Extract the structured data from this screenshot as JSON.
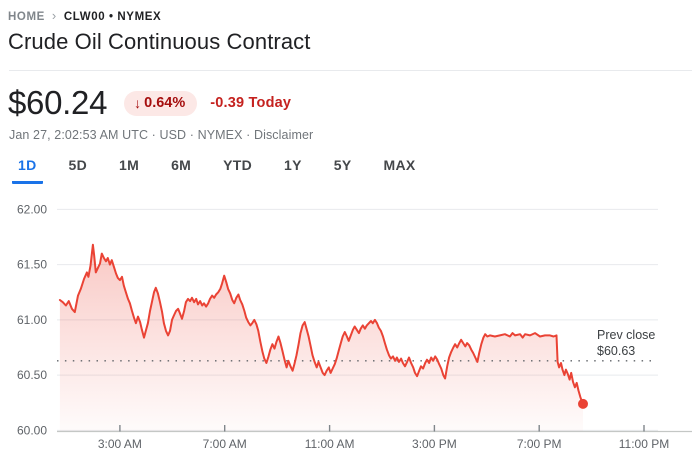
{
  "breadcrumb": {
    "home": "HOME",
    "separator": "›",
    "symbol": "CLW00 • NYMEX"
  },
  "header": {
    "title": "Crude Oil Continuous Contract"
  },
  "quote": {
    "price": "$60.24",
    "down_arrow": "↓",
    "change_percent": "0.64%",
    "change_today": "-0.39 Today",
    "meta_prefix": "Jan 27, 2:02:53 AM UTC · USD · NYMEX · ",
    "disclaimer": "Disclaimer"
  },
  "range_tabs": [
    {
      "label": "1D",
      "active": true
    },
    {
      "label": "5D",
      "active": false
    },
    {
      "label": "1M",
      "active": false
    },
    {
      "label": "6M",
      "active": false
    },
    {
      "label": "YTD",
      "active": false
    },
    {
      "label": "1Y",
      "active": false
    },
    {
      "label": "5Y",
      "active": false
    },
    {
      "label": "MAX",
      "active": false
    }
  ],
  "colors": {
    "accent_blue": "#1A73E8",
    "line_red": "#EA4335",
    "badge_bg": "#FCE8E6",
    "badge_text": "#A50E0E",
    "change_text": "#C5221F",
    "grid": "#E8EAED",
    "axis": "#C4C7C5",
    "axis_text": "#5F6368"
  },
  "chart_data": {
    "type": "line",
    "title": "Crude Oil Continuous Contract intraday price (1D)",
    "x_unit": "hours_since_midnight",
    "y_unit": "USD",
    "xlim": [
      0.6,
      24.83
    ],
    "ylim": [
      59.99,
      62.13
    ],
    "grid": true,
    "y_ticks": [
      62.0,
      61.5,
      61.0,
      60.5,
      60.0
    ],
    "y_tick_labels": [
      "62.00",
      "61.50",
      "61.00",
      "60.50",
      "60.00"
    ],
    "x_ticks": [
      {
        "t": 3,
        "label": "3:00 AM"
      },
      {
        "t": 7,
        "label": "7:00 AM"
      },
      {
        "t": 11,
        "label": "11:00 AM"
      },
      {
        "t": 15,
        "label": "3:00 PM"
      },
      {
        "t": 19,
        "label": "7:00 PM"
      },
      {
        "t": 23,
        "label": "11:00 PM"
      }
    ],
    "prev_close": {
      "label_line1": "Prev close",
      "label_line2": "$60.63",
      "value": 60.63
    },
    "end_marker": {
      "t": 20.67,
      "value": 60.24
    },
    "colors": {
      "line": "#EA4335"
    },
    "series": [
      {
        "name": "CLW00",
        "points": [
          [
            0.71,
            61.18
          ],
          [
            0.82,
            61.16
          ],
          [
            0.94,
            61.13
          ],
          [
            1.05,
            61.17
          ],
          [
            1.17,
            61.1
          ],
          [
            1.28,
            61.07
          ],
          [
            1.4,
            61.22
          ],
          [
            1.51,
            61.28
          ],
          [
            1.63,
            61.37
          ],
          [
            1.74,
            61.43
          ],
          [
            1.8,
            61.39
          ],
          [
            1.88,
            61.49
          ],
          [
            1.97,
            61.68
          ],
          [
            2.02,
            61.58
          ],
          [
            2.08,
            61.43
          ],
          [
            2.16,
            61.47
          ],
          [
            2.24,
            61.51
          ],
          [
            2.31,
            61.6
          ],
          [
            2.39,
            61.56
          ],
          [
            2.47,
            61.53
          ],
          [
            2.54,
            61.56
          ],
          [
            2.62,
            61.5
          ],
          [
            2.69,
            61.54
          ],
          [
            2.77,
            61.48
          ],
          [
            2.85,
            61.42
          ],
          [
            2.92,
            61.38
          ],
          [
            3.0,
            61.36
          ],
          [
            3.08,
            61.39
          ],
          [
            3.15,
            61.31
          ],
          [
            3.23,
            61.25
          ],
          [
            3.31,
            61.19
          ],
          [
            3.38,
            61.15
          ],
          [
            3.46,
            61.08
          ],
          [
            3.54,
            61.02
          ],
          [
            3.61,
            60.97
          ],
          [
            3.69,
            61.03
          ],
          [
            3.77,
            60.98
          ],
          [
            3.84,
            60.91
          ],
          [
            3.92,
            60.84
          ],
          [
            3.99,
            60.9
          ],
          [
            4.07,
            60.97
          ],
          [
            4.15,
            61.08
          ],
          [
            4.22,
            61.16
          ],
          [
            4.3,
            61.25
          ],
          [
            4.37,
            61.29
          ],
          [
            4.45,
            61.24
          ],
          [
            4.53,
            61.16
          ],
          [
            4.61,
            61.07
          ],
          [
            4.68,
            60.97
          ],
          [
            4.76,
            60.9
          ],
          [
            4.84,
            60.86
          ],
          [
            4.91,
            60.9
          ],
          [
            4.99,
            61.0
          ],
          [
            5.06,
            61.04
          ],
          [
            5.14,
            61.08
          ],
          [
            5.22,
            61.1
          ],
          [
            5.29,
            61.06
          ],
          [
            5.37,
            61.01
          ],
          [
            5.45,
            61.08
          ],
          [
            5.52,
            61.16
          ],
          [
            5.6,
            61.19
          ],
          [
            5.68,
            61.17
          ],
          [
            5.75,
            61.2
          ],
          [
            5.83,
            61.16
          ],
          [
            5.91,
            61.19
          ],
          [
            5.98,
            61.14
          ],
          [
            6.06,
            61.17
          ],
          [
            6.14,
            61.13
          ],
          [
            6.21,
            61.15
          ],
          [
            6.29,
            61.12
          ],
          [
            6.37,
            61.15
          ],
          [
            6.44,
            61.19
          ],
          [
            6.52,
            61.22
          ],
          [
            6.6,
            61.2
          ],
          [
            6.67,
            61.23
          ],
          [
            6.75,
            61.25
          ],
          [
            6.83,
            61.28
          ],
          [
            6.9,
            61.33
          ],
          [
            6.98,
            61.4
          ],
          [
            7.06,
            61.34
          ],
          [
            7.13,
            61.28
          ],
          [
            7.21,
            61.24
          ],
          [
            7.29,
            61.18
          ],
          [
            7.36,
            61.15
          ],
          [
            7.44,
            61.2
          ],
          [
            7.52,
            61.23
          ],
          [
            7.59,
            61.18
          ],
          [
            7.67,
            61.14
          ],
          [
            7.75,
            61.08
          ],
          [
            7.82,
            61.02
          ],
          [
            7.9,
            60.98
          ],
          [
            7.98,
            60.95
          ],
          [
            8.05,
            60.97
          ],
          [
            8.13,
            61.0
          ],
          [
            8.21,
            60.96
          ],
          [
            8.28,
            60.9
          ],
          [
            8.36,
            60.8
          ],
          [
            8.44,
            60.71
          ],
          [
            8.51,
            60.65
          ],
          [
            8.59,
            60.61
          ],
          [
            8.67,
            60.67
          ],
          [
            8.74,
            60.73
          ],
          [
            8.82,
            60.78
          ],
          [
            8.9,
            60.74
          ],
          [
            8.97,
            60.8
          ],
          [
            9.05,
            60.85
          ],
          [
            9.13,
            60.79
          ],
          [
            9.2,
            60.72
          ],
          [
            9.28,
            60.64
          ],
          [
            9.36,
            60.57
          ],
          [
            9.43,
            60.63
          ],
          [
            9.51,
            60.58
          ],
          [
            9.59,
            60.54
          ],
          [
            9.66,
            60.6
          ],
          [
            9.74,
            60.68
          ],
          [
            9.82,
            60.78
          ],
          [
            9.89,
            60.88
          ],
          [
            9.97,
            60.95
          ],
          [
            10.05,
            60.98
          ],
          [
            10.12,
            60.92
          ],
          [
            10.2,
            60.85
          ],
          [
            10.28,
            60.76
          ],
          [
            10.35,
            60.68
          ],
          [
            10.43,
            60.62
          ],
          [
            10.51,
            60.57
          ],
          [
            10.58,
            60.62
          ],
          [
            10.66,
            60.57
          ],
          [
            10.74,
            60.52
          ],
          [
            10.81,
            60.5
          ],
          [
            10.89,
            60.54
          ],
          [
            10.97,
            60.57
          ],
          [
            11.04,
            60.52
          ],
          [
            11.12,
            60.56
          ],
          [
            11.2,
            60.6
          ],
          [
            11.27,
            60.65
          ],
          [
            11.35,
            60.72
          ],
          [
            11.43,
            60.79
          ],
          [
            11.5,
            60.85
          ],
          [
            11.58,
            60.89
          ],
          [
            11.66,
            60.85
          ],
          [
            11.73,
            60.81
          ],
          [
            11.81,
            60.86
          ],
          [
            11.89,
            60.91
          ],
          [
            11.96,
            60.94
          ],
          [
            12.04,
            60.91
          ],
          [
            12.12,
            60.88
          ],
          [
            12.19,
            60.92
          ],
          [
            12.27,
            60.95
          ],
          [
            12.35,
            60.92
          ],
          [
            12.42,
            60.95
          ],
          [
            12.5,
            60.97
          ],
          [
            12.58,
            60.99
          ],
          [
            12.65,
            60.97
          ],
          [
            12.73,
            61.0
          ],
          [
            12.81,
            60.97
          ],
          [
            12.88,
            60.93
          ],
          [
            12.96,
            60.9
          ],
          [
            13.04,
            60.85
          ],
          [
            13.11,
            60.79
          ],
          [
            13.19,
            60.73
          ],
          [
            13.27,
            60.68
          ],
          [
            13.34,
            60.65
          ],
          [
            13.42,
            60.67
          ],
          [
            13.5,
            60.63
          ],
          [
            13.57,
            60.66
          ],
          [
            13.65,
            60.62
          ],
          [
            13.73,
            60.65
          ],
          [
            13.8,
            60.61
          ],
          [
            13.88,
            60.58
          ],
          [
            13.96,
            60.62
          ],
          [
            14.03,
            60.66
          ],
          [
            14.11,
            60.61
          ],
          [
            14.19,
            60.57
          ],
          [
            14.26,
            60.52
          ],
          [
            14.34,
            60.49
          ],
          [
            14.42,
            60.54
          ],
          [
            14.49,
            60.58
          ],
          [
            14.57,
            60.56
          ],
          [
            14.65,
            60.61
          ],
          [
            14.72,
            60.64
          ],
          [
            14.8,
            60.61
          ],
          [
            14.88,
            60.66
          ],
          [
            14.95,
            60.63
          ],
          [
            15.03,
            60.67
          ],
          [
            15.11,
            60.64
          ],
          [
            15.18,
            60.6
          ],
          [
            15.26,
            60.56
          ],
          [
            15.34,
            60.5
          ],
          [
            15.41,
            60.47
          ],
          [
            15.49,
            60.58
          ],
          [
            15.56,
            60.66
          ],
          [
            15.64,
            60.71
          ],
          [
            15.72,
            60.75
          ],
          [
            15.79,
            60.78
          ],
          [
            15.87,
            60.75
          ],
          [
            15.95,
            60.79
          ],
          [
            16.02,
            60.82
          ],
          [
            16.1,
            60.79
          ],
          [
            16.18,
            60.76
          ],
          [
            16.25,
            60.79
          ],
          [
            16.33,
            60.77
          ],
          [
            16.41,
            60.73
          ],
          [
            16.48,
            60.7
          ],
          [
            16.56,
            60.66
          ],
          [
            16.64,
            60.62
          ],
          [
            16.71,
            60.7
          ],
          [
            16.79,
            60.78
          ],
          [
            16.87,
            60.84
          ],
          [
            16.94,
            60.87
          ],
          [
            17.02,
            60.85
          ],
          [
            17.12,
            60.86
          ],
          [
            17.31,
            60.85
          ],
          [
            17.5,
            60.86
          ],
          [
            17.69,
            60.87
          ],
          [
            17.88,
            60.85
          ],
          [
            17.98,
            60.88
          ],
          [
            18.08,
            60.86
          ],
          [
            18.27,
            60.87
          ],
          [
            18.37,
            60.84
          ],
          [
            18.46,
            60.87
          ],
          [
            18.65,
            60.86
          ],
          [
            18.84,
            60.88
          ],
          [
            19.03,
            60.85
          ],
          [
            19.22,
            60.86
          ],
          [
            19.41,
            60.86
          ],
          [
            19.55,
            60.85
          ],
          [
            19.66,
            60.86
          ],
          [
            19.7,
            60.62
          ],
          [
            19.76,
            60.57
          ],
          [
            19.83,
            60.61
          ],
          [
            19.89,
            60.55
          ],
          [
            19.96,
            60.5
          ],
          [
            20.02,
            60.55
          ],
          [
            20.09,
            60.51
          ],
          [
            20.16,
            60.46
          ],
          [
            20.22,
            60.52
          ],
          [
            20.29,
            60.44
          ],
          [
            20.36,
            60.39
          ],
          [
            20.43,
            60.43
          ],
          [
            20.5,
            60.36
          ],
          [
            20.57,
            60.3
          ],
          [
            20.63,
            60.26
          ],
          [
            20.67,
            60.24
          ]
        ]
      }
    ]
  }
}
